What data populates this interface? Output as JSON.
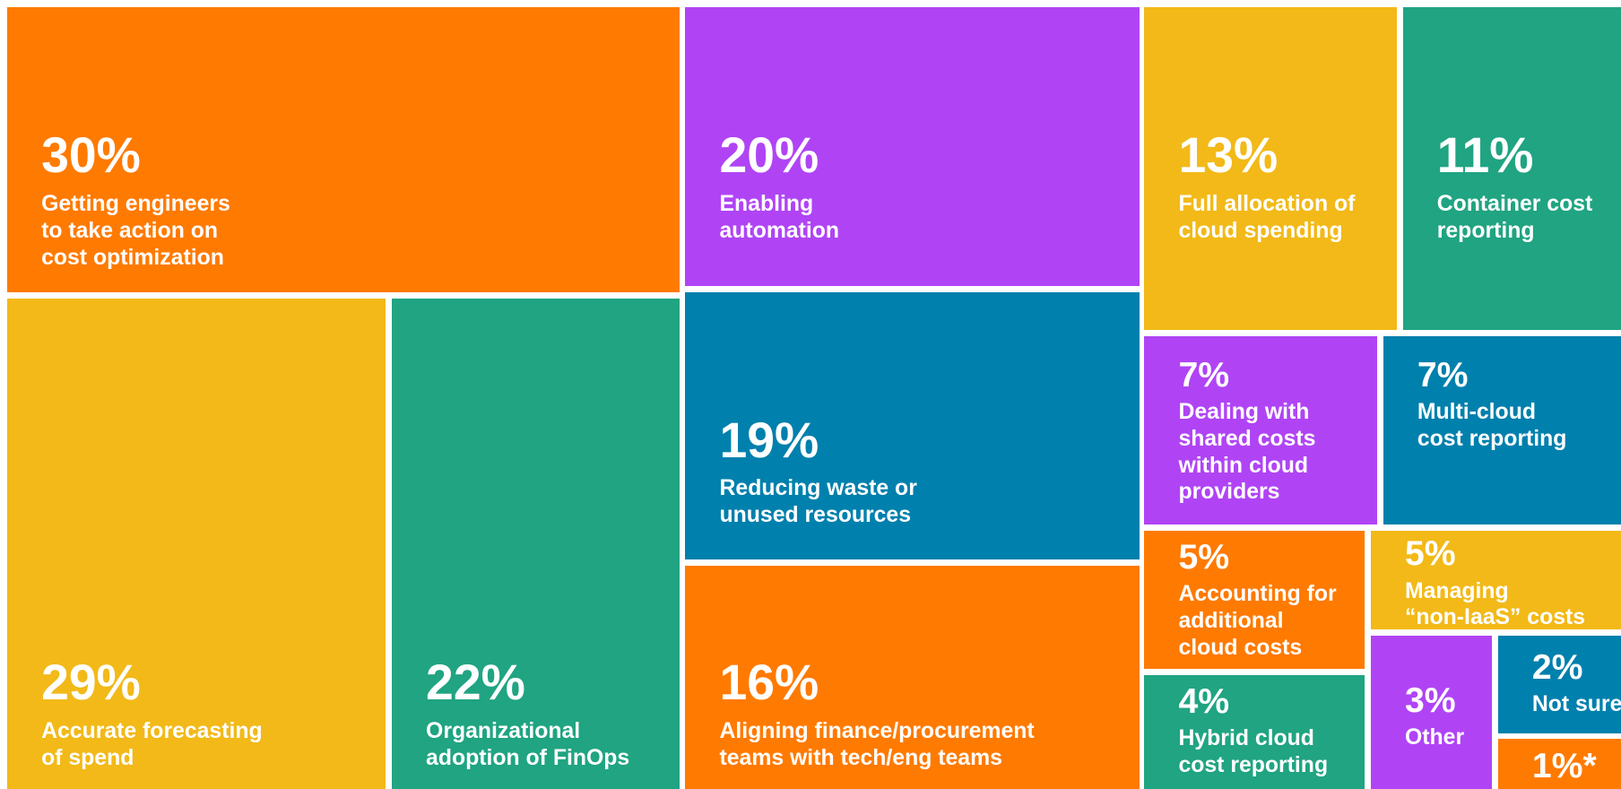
{
  "chart_data": {
    "type": "treemap",
    "values": [
      30,
      20,
      13,
      11,
      29,
      22,
      19,
      7,
      7,
      5,
      5,
      16,
      4,
      3,
      2,
      1
    ],
    "value_labels": [
      "30%",
      "20%",
      "13%",
      "11%",
      "29%",
      "22%",
      "19%",
      "7%",
      "7%",
      "5%",
      "5%",
      "16%",
      "4%",
      "3%",
      "2%",
      "1%*"
    ],
    "categories": [
      [
        "Getting engineers",
        "to take action on",
        "cost optimization"
      ],
      [
        "Enabling",
        "automation"
      ],
      [
        "Full allocation of",
        "cloud spending"
      ],
      [
        "Container cost",
        "reporting"
      ],
      [
        "Accurate forecasting",
        "of spend"
      ],
      [
        "Organizational",
        "adoption of FinOps"
      ],
      [
        "Reducing waste or",
        "unused resources"
      ],
      [
        "Dealing with",
        "shared costs",
        "within cloud",
        "providers"
      ],
      [
        "Multi-cloud",
        "cost reporting"
      ],
      [
        "Accounting for",
        "additional",
        "cloud costs"
      ],
      [
        "Managing",
        "“non-IaaS” costs"
      ],
      [
        "Aligning finance/procurement",
        "teams with tech/eng teams"
      ],
      [
        "Hybrid cloud",
        "cost reporting"
      ],
      [
        "Other"
      ],
      [
        "Not sure"
      ],
      null
    ],
    "colors": [
      "#ff7a00",
      "#b044f5",
      "#f2b918",
      "#20a482",
      "#f2b918",
      "#20a482",
      "#0080ad",
      "#b044f5",
      "#0080ad",
      "#ff7a00",
      "#f2b918",
      "#ff7a00",
      "#20a482",
      "#b044f5",
      "#0080ad",
      "#ff7a00"
    ],
    "patterned": [
      false,
      true,
      false,
      false,
      true,
      false,
      false,
      false,
      true,
      true,
      true,
      true,
      false,
      true,
      true,
      true
    ]
  }
}
